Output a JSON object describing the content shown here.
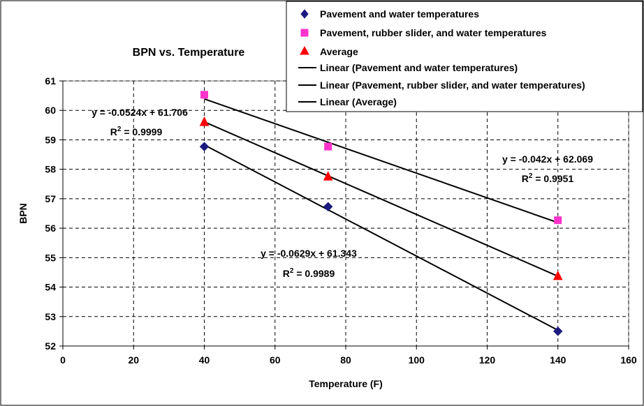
{
  "chart_data": {
    "type": "scatter",
    "title": "BPN vs. Temperature",
    "xlabel": "Temperature (F)",
    "ylabel": "BPN",
    "xlim": [
      0,
      160
    ],
    "ylim": [
      52,
      61
    ],
    "x_ticks": [
      0,
      20,
      40,
      60,
      80,
      100,
      120,
      140,
      160
    ],
    "y_ticks": [
      52,
      53,
      54,
      55,
      56,
      57,
      58,
      59,
      60,
      61
    ],
    "grid": true,
    "legend_position": "top-right",
    "series": [
      {
        "name": "Pavement and water temperatures",
        "marker": "diamond",
        "color": "#1a1a80",
        "x": [
          40,
          75,
          140
        ],
        "y": [
          58.77,
          56.73,
          52.5
        ]
      },
      {
        "name": "Pavement, rubber slider, and water temperatures",
        "marker": "square",
        "color": "#ff33cc",
        "x": [
          40,
          75,
          140
        ],
        "y": [
          60.53,
          58.77,
          56.27
        ]
      },
      {
        "name": "Average",
        "marker": "triangle",
        "color": "#ff0000",
        "x": [
          40,
          75,
          140
        ],
        "y": [
          59.6,
          57.75,
          54.37
        ]
      }
    ],
    "trendlines": [
      {
        "name": "Linear (Pavement and water temperatures)",
        "slope": -0.0629,
        "intercept": 61.343,
        "x_range": [
          40,
          140
        ],
        "equation": "y = -0.0629x + 61.343",
        "r2_prefix": "R",
        "r2_sup": "2",
        "r2_value": " = 0.9989"
      },
      {
        "name": "Linear (Pavement, rubber slider, and water temperatures)",
        "slope": -0.042,
        "intercept": 62.069,
        "x_range": [
          40,
          140
        ],
        "equation": "y = -0.042x + 62.069",
        "r2_prefix": "R",
        "r2_sup": "2",
        "r2_value": " = 0.9951"
      },
      {
        "name": "Linear (Average)",
        "slope": -0.0524,
        "intercept": 61.706,
        "x_range": [
          40,
          140
        ],
        "equation": "y = -0.0524x + 61.706",
        "r2_prefix": "R",
        "r2_sup": "2",
        "r2_value": " = 0.9999"
      }
    ]
  }
}
